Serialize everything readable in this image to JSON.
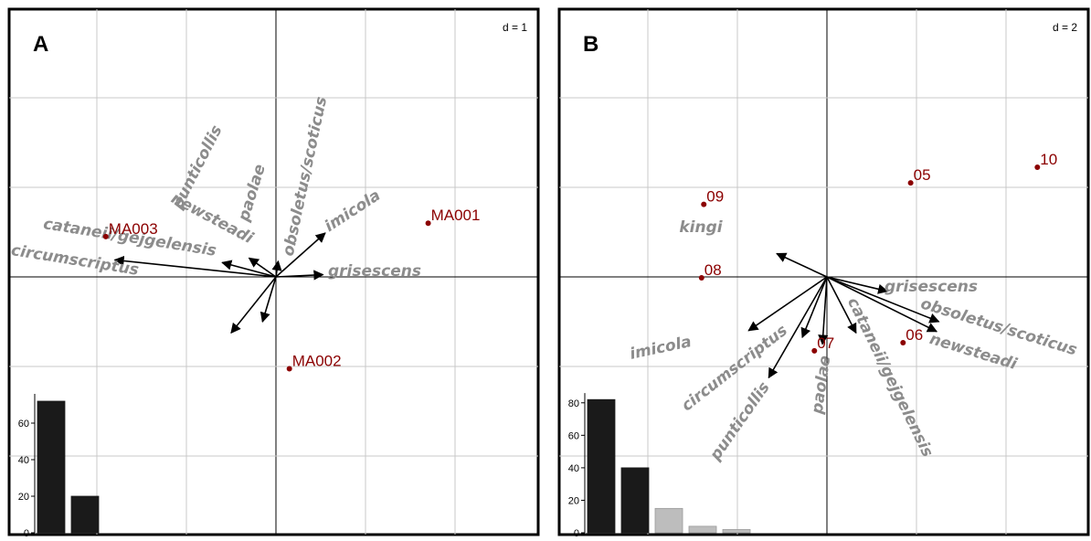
{
  "chart_data": [
    {
      "type": "biplot",
      "panel_label": "A",
      "scale_label": "d = 1",
      "xlim": [
        -3,
        3
      ],
      "ylim": [
        -3,
        3
      ],
      "grid": true,
      "variables": [
        {
          "name": "obsoletus/scoticus",
          "x": 0.05,
          "y": 0.35
        },
        {
          "name": "imicola",
          "x": 1.1,
          "y": 0.98
        },
        {
          "name": "newsteadi",
          "x": -0.6,
          "y": 0.42
        },
        {
          "name": "cataneii/gejgelensis",
          "x": -1.2,
          "y": 0.32
        },
        {
          "name": "circumscriptus",
          "x": -3.6,
          "y": 0.38
        },
        {
          "name": "grisescens",
          "x": 1.05,
          "y": 0.05
        },
        {
          "name": "punticollis",
          "x": -1.0,
          "y": -1.25
        },
        {
          "name": "paolae",
          "x": -0.3,
          "y": -1.0
        }
      ],
      "sites": [
        {
          "name": "MA001",
          "x": 3.4,
          "y": 1.2
        },
        {
          "name": "MA002",
          "x": 0.3,
          "y": -2.05
        },
        {
          "name": "MA003",
          "x": -3.8,
          "y": 0.9
        }
      ],
      "eigenvalues": {
        "values": [
          72,
          20
        ],
        "yticks": [
          "0",
          "20",
          "40",
          "60"
        ],
        "ymax": 80
      }
    },
    {
      "type": "biplot",
      "panel_label": "B",
      "scale_label": "d = 2",
      "xlim": [
        -3,
        3
      ],
      "ylim": [
        -3,
        3
      ],
      "grid": true,
      "variables": [
        {
          "name": "kingi",
          "x": -1.12,
          "y": 0.52
        },
        {
          "name": "grisescens",
          "x": 1.35,
          "y": -0.32
        },
        {
          "name": "obsoletus/scoticus",
          "x": 2.45,
          "y": -1.22
        },
        {
          "name": "newsteadi",
          "x": 2.5,
          "y": -1.0
        },
        {
          "name": "imicola",
          "x": -1.75,
          "y": -1.2
        },
        {
          "name": "circumscriptus",
          "x": -0.55,
          "y": -1.35
        },
        {
          "name": "punticollis",
          "x": -1.3,
          "y": -2.25
        },
        {
          "name": "paolae",
          "x": -0.1,
          "y": -1.5
        },
        {
          "name": "cataneii/gejgelensis",
          "x": 0.65,
          "y": -1.25
        }
      ],
      "sites": [
        {
          "name": "05",
          "x": 1.87,
          "y": 2.1
        },
        {
          "name": "06",
          "x": 1.7,
          "y": -1.47
        },
        {
          "name": "07",
          "x": -0.28,
          "y": -1.65
        },
        {
          "name": "08",
          "x": -2.8,
          "y": -0.02
        },
        {
          "name": "09",
          "x": -2.75,
          "y": 1.62
        },
        {
          "name": "10",
          "x": 4.7,
          "y": 2.45
        }
      ],
      "eigenvalues": {
        "values": [
          82,
          40,
          15,
          4,
          2
        ],
        "yticks": [
          "0",
          "20",
          "40",
          "60",
          "80"
        ],
        "ymax": 90
      }
    }
  ]
}
